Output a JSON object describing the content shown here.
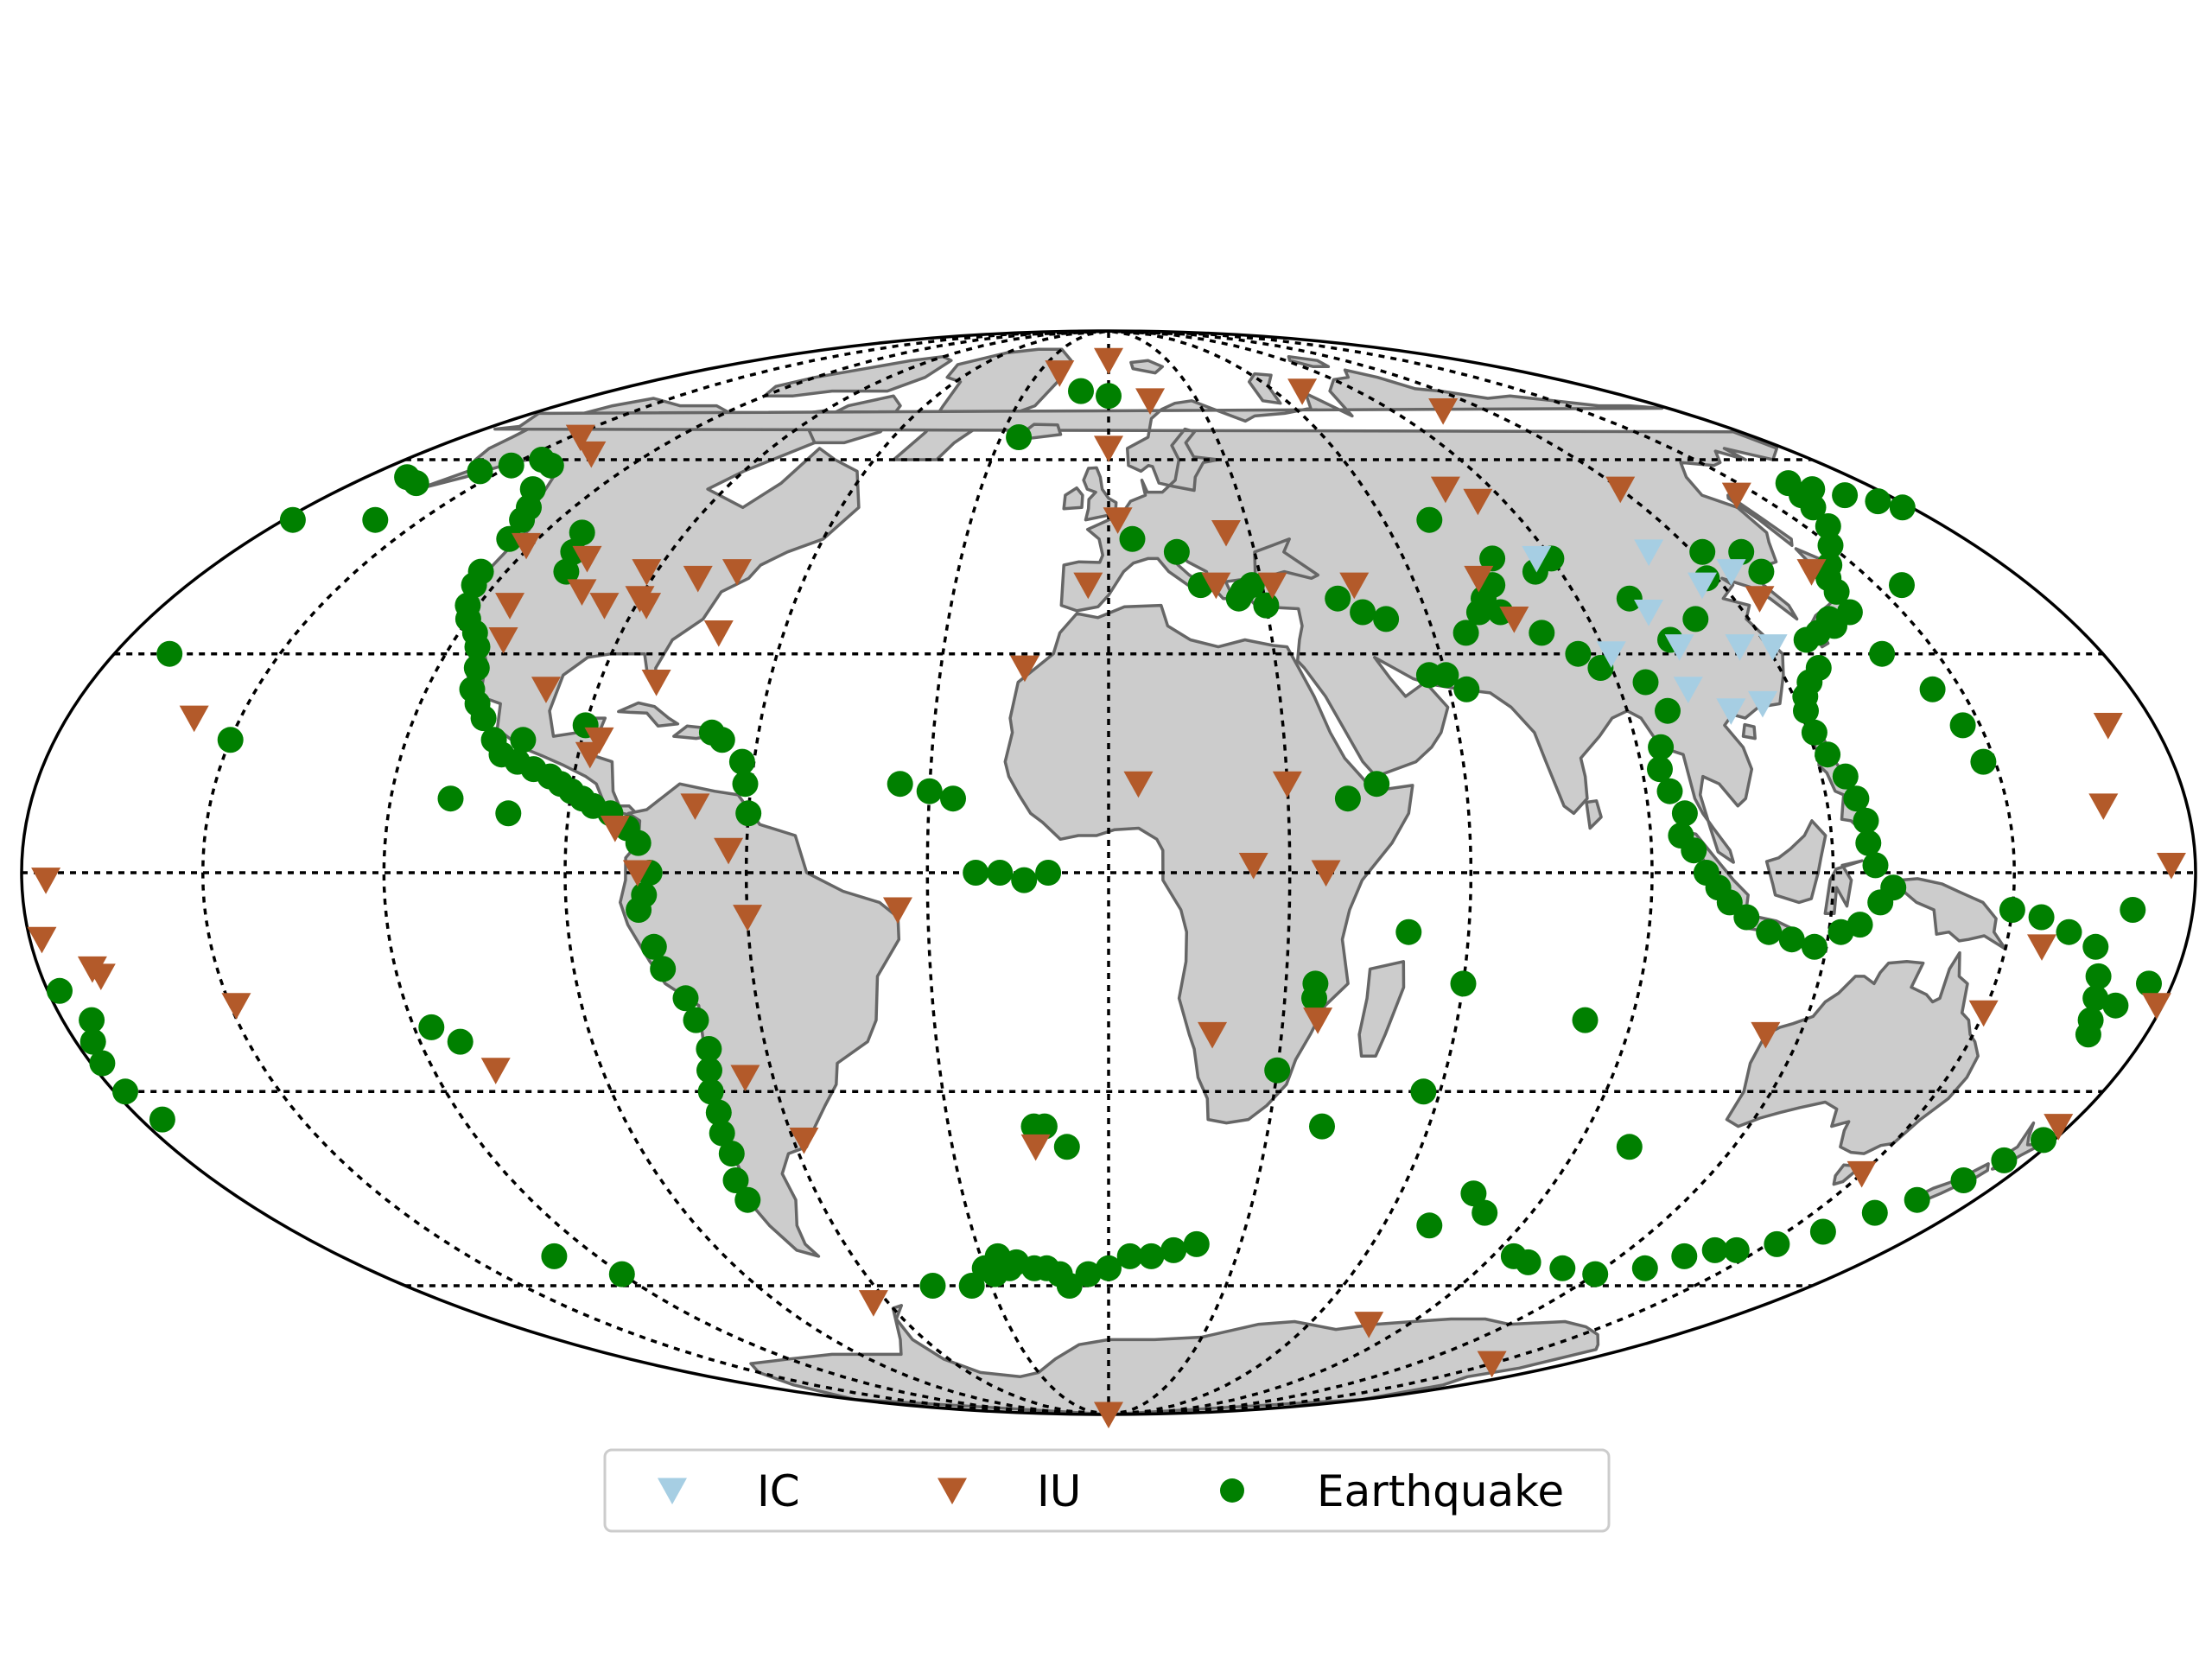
{
  "map": {
    "projection": "mollweide",
    "grid": {
      "shown": true,
      "style": "dotted",
      "color": "#000000",
      "meridian_step_deg": 30,
      "parallel_step_deg": 30
    },
    "colors": {
      "land": "#cccccc",
      "coastline": "#666666",
      "ocean": "#ffffff",
      "border": "#000000"
    },
    "legend": {
      "placement": "bottom-center",
      "entries": [
        {
          "label": "IC",
          "marker": "triangle-down",
          "color": "#a6cee3"
        },
        {
          "label": "IU",
          "marker": "triangle-down",
          "color": "#b35a2a"
        },
        {
          "label": "Earthquake",
          "marker": "circle",
          "color": "#008000"
        }
      ]
    }
  },
  "chart_data": {
    "type": "scatter",
    "series": [
      {
        "name": "IC",
        "marker": "triangle-down",
        "color": "#a6cee3",
        "points": [
          [
            87,
            44
          ],
          [
            102,
            36
          ],
          [
            111,
            45
          ],
          [
            116,
            40
          ],
          [
            124,
            42
          ],
          [
            104,
            31
          ],
          [
            115,
            31
          ],
          [
            121,
            31
          ],
          [
            108,
            22
          ],
          [
            91,
            30
          ],
          [
            102,
            25
          ],
          [
            114,
            23
          ]
        ]
      },
      {
        "name": "IU",
        "marker": "triangle-down",
        "color": "#b35a2a",
        "points": [
          [
            -158,
            21
          ],
          [
            -176,
            -1
          ],
          [
            -170,
            -14
          ],
          [
            -149,
            -18
          ],
          [
            -109,
            -27
          ],
          [
            -147,
            64
          ],
          [
            -135,
            61
          ],
          [
            -121,
            46
          ],
          [
            -106,
            44
          ],
          [
            -102,
            39
          ],
          [
            -111,
            32
          ],
          [
            -114,
            37
          ],
          [
            -96,
            37
          ],
          [
            -88,
            37
          ],
          [
            -81,
            41
          ],
          [
            -74,
            42
          ],
          [
            -72,
            33
          ],
          [
            -90,
            38
          ],
          [
            -92,
            42
          ],
          [
            -88,
            16
          ],
          [
            -99,
            25
          ],
          [
            -80,
            26
          ],
          [
            -87,
            18
          ],
          [
            -82,
            6
          ],
          [
            -69,
            9
          ],
          [
            -63,
            3
          ],
          [
            -78,
            0
          ],
          [
            -60,
            -6
          ],
          [
            -35,
            -5
          ],
          [
            -65,
            -28
          ],
          [
            -58,
            -37
          ],
          [
            -64,
            -63
          ],
          [
            -14,
            -38
          ],
          [
            -15,
            28
          ],
          [
            -21,
            77
          ],
          [
            0,
            80
          ],
          [
            14,
            71
          ],
          [
            0,
            62
          ],
          [
            2,
            50
          ],
          [
            25,
            48
          ],
          [
            -4,
            40
          ],
          [
            32,
            40
          ],
          [
            21,
            40
          ],
          [
            48,
            40
          ],
          [
            5,
            12
          ],
          [
            30,
            12
          ],
          [
            24,
            1
          ],
          [
            36,
            0
          ],
          [
            36,
            -20
          ],
          [
            18,
            -22
          ],
          [
            70,
            73
          ],
          [
            79,
            55
          ],
          [
            73,
            41
          ],
          [
            76,
            35
          ],
          [
            84,
            53
          ],
          [
            106,
            69
          ],
          [
            120,
            55
          ],
          [
            125,
            38
          ],
          [
            140,
            42
          ],
          [
            145,
            54
          ],
          [
            114,
            -22
          ],
          [
            150,
            -19
          ],
          [
            156,
            -10
          ],
          [
            172,
            20
          ],
          [
            176,
            1
          ],
          [
            166,
            9
          ],
          [
            179,
            -18
          ],
          [
            -178,
            -9
          ],
          [
            -171,
            -13
          ],
          [
            178,
            -35
          ],
          [
            150,
            -42
          ],
          [
            78,
            -67
          ],
          [
            150,
            -75
          ],
          [
            0,
            -90
          ]
        ]
      },
      {
        "name": "Earthquake",
        "marker": "circle",
        "color": "#008000",
        "points": [
          [
            -170,
            57
          ],
          [
            -165,
            56
          ],
          [
            -155,
            58
          ],
          [
            -150,
            59
          ],
          [
            -145,
            60
          ],
          [
            -140,
            59
          ],
          [
            -135,
            55
          ],
          [
            -130,
            52
          ],
          [
            -128,
            50
          ],
          [
            -126,
            47
          ],
          [
            -125,
            42
          ],
          [
            -124,
            40
          ],
          [
            -122,
            37
          ],
          [
            -120,
            35
          ],
          [
            -117,
            33
          ],
          [
            -115,
            31
          ],
          [
            -113,
            28
          ],
          [
            -112,
            25
          ],
          [
            -110,
            23
          ],
          [
            -108,
            21
          ],
          [
            -105,
            18
          ],
          [
            -103,
            16
          ],
          [
            -100,
            15
          ],
          [
            -97,
            14
          ],
          [
            -94,
            13
          ],
          [
            -92,
            12
          ],
          [
            -90,
            11
          ],
          [
            -88,
            10
          ],
          [
            -86,
            9
          ],
          [
            -83,
            8
          ],
          [
            -80,
            6
          ],
          [
            -78,
            4
          ],
          [
            -76,
            0
          ],
          [
            -77,
            -3
          ],
          [
            -78,
            -5
          ],
          [
            -76,
            -10
          ],
          [
            -75,
            -13
          ],
          [
            -72,
            -17
          ],
          [
            -71,
            -20
          ],
          [
            -70,
            -24
          ],
          [
            -71,
            -27
          ],
          [
            -72,
            -30
          ],
          [
            -72,
            -33
          ],
          [
            -73,
            -36
          ],
          [
            -73,
            -39
          ],
          [
            -75,
            -43
          ],
          [
            -75,
            -46
          ],
          [
            -66,
            18
          ],
          [
            -62,
            15
          ],
          [
            -61,
            12
          ],
          [
            -68,
            19
          ],
          [
            -60,
            8
          ],
          [
            -35,
            12
          ],
          [
            -30,
            11
          ],
          [
            -26,
            10
          ],
          [
            -22,
            0
          ],
          [
            -18,
            0
          ],
          [
            -14,
            -1
          ],
          [
            -10,
            0
          ],
          [
            -12,
            -35
          ],
          [
            -14,
            -35
          ],
          [
            -8,
            -38
          ],
          [
            -26,
            -55
          ],
          [
            -28,
            -58
          ],
          [
            -30,
            -57
          ],
          [
            -24,
            -57
          ],
          [
            -22,
            -56
          ],
          [
            -18,
            -57
          ],
          [
            -15,
            -57
          ],
          [
            -12,
            -58
          ],
          [
            -10,
            -60
          ],
          [
            -5,
            -58
          ],
          [
            0,
            -57
          ],
          [
            5,
            -55
          ],
          [
            10,
            -55
          ],
          [
            15,
            -54
          ],
          [
            20,
            -53
          ],
          [
            -35,
            -60
          ],
          [
            -45,
            -60
          ],
          [
            -117,
            -21
          ],
          [
            -113,
            -23
          ],
          [
            -130,
            -55
          ],
          [
            -120,
            -58
          ],
          [
            -150,
            18
          ],
          [
            -100,
            8
          ],
          [
            -110,
            10
          ],
          [
            -10,
            73
          ],
          [
            -25,
            64
          ],
          [
            0,
            72
          ],
          [
            5,
            47
          ],
          [
            14,
            45
          ],
          [
            18,
            40
          ],
          [
            25,
            38
          ],
          [
            28,
            40
          ],
          [
            30,
            37
          ],
          [
            26,
            39
          ],
          [
            44,
            38
          ],
          [
            48,
            36
          ],
          [
            52,
            35
          ],
          [
            57,
            27
          ],
          [
            60,
            27
          ],
          [
            63,
            25
          ],
          [
            66,
            33
          ],
          [
            70,
            36
          ],
          [
            72,
            38
          ],
          [
            74,
            36
          ],
          [
            80,
            33
          ],
          [
            85,
            30
          ],
          [
            88,
            28
          ],
          [
            95,
            26
          ],
          [
            97,
            22
          ],
          [
            94,
            17
          ],
          [
            93,
            14
          ],
          [
            94,
            11
          ],
          [
            96,
            8
          ],
          [
            95,
            5
          ],
          [
            97,
            3
          ],
          [
            99,
            0
          ],
          [
            101,
            -2
          ],
          [
            103,
            -4
          ],
          [
            106,
            -6
          ],
          [
            110,
            -8
          ],
          [
            114,
            -9
          ],
          [
            118,
            -10
          ],
          [
            122,
            -8
          ],
          [
            125,
            -7
          ],
          [
            128,
            -4
          ],
          [
            130,
            -2
          ],
          [
            127,
            1
          ],
          [
            126,
            4
          ],
          [
            126,
            7
          ],
          [
            125,
            10
          ],
          [
            124,
            13
          ],
          [
            122,
            16
          ],
          [
            121,
            19
          ],
          [
            121,
            22
          ],
          [
            122,
            24
          ],
          [
            124,
            26
          ],
          [
            127,
            28
          ],
          [
            128,
            32
          ],
          [
            131,
            33
          ],
          [
            135,
            34
          ],
          [
            140,
            36
          ],
          [
            141,
            39
          ],
          [
            142,
            41
          ],
          [
            143,
            42
          ],
          [
            145,
            43
          ],
          [
            150,
            46
          ],
          [
            155,
            49
          ],
          [
            158,
            52
          ],
          [
            160,
            54
          ],
          [
            162,
            56
          ],
          [
            165,
            55
          ],
          [
            170,
            54
          ],
          [
            175,
            53
          ],
          [
            178,
            52
          ],
          [
            130,
            45
          ],
          [
            130,
            42
          ],
          [
            122,
            45
          ],
          [
            118,
            41
          ],
          [
            110,
            35
          ],
          [
            103,
            32
          ],
          [
            100,
            38
          ],
          [
            90,
            44
          ],
          [
            85,
            42
          ],
          [
            78,
            44
          ],
          [
            75,
            40
          ],
          [
            70,
            50
          ],
          [
            135,
            35
          ],
          [
            150,
            -5
          ],
          [
            155,
            -6
          ],
          [
            160,
            -8
          ],
          [
            165,
            -10
          ],
          [
            167,
            -14
          ],
          [
            168,
            -17
          ],
          [
            169,
            -20
          ],
          [
            170,
            -22
          ],
          [
            172,
            -18
          ],
          [
            176,
            -15
          ],
          [
            -178,
            -16
          ],
          [
            -175,
            -20
          ],
          [
            -177,
            -23
          ],
          [
            -178,
            -26
          ],
          [
            -178,
            -30
          ],
          [
            -176,
            -34
          ],
          [
            178,
            -37
          ],
          [
            175,
            -40
          ],
          [
            172,
            -43
          ],
          [
            168,
            -46
          ],
          [
            163,
            -48
          ],
          [
            158,
            -51
          ],
          [
            152,
            -53
          ],
          [
            145,
            -54
          ],
          [
            140,
            -54
          ],
          [
            135,
            -55
          ],
          [
            130,
            -57
          ],
          [
            120,
            -58
          ],
          [
            110,
            -57
          ],
          [
            100,
            -56
          ],
          [
            95,
            -55
          ],
          [
            80,
            -48
          ],
          [
            70,
            -50
          ],
          [
            75,
            -45
          ],
          [
            100,
            -38
          ],
          [
            82,
            -20
          ],
          [
            60,
            -15
          ],
          [
            57,
            -30
          ],
          [
            35,
            -17
          ],
          [
            30,
            -27
          ],
          [
            40,
            -35
          ],
          [
            35,
            -15
          ],
          [
            50,
            -8
          ],
          [
            45,
            12
          ],
          [
            40,
            10
          ],
          [
            147,
            20
          ],
          [
            148,
            15
          ],
          [
            140,
            30
          ],
          [
            145,
            25
          ],
          [
            170,
            -5
          ],
          [
            -160,
            50
          ],
          [
            -178,
            50
          ],
          [
            155,
            40
          ],
          [
            -170,
            30
          ],
          [
            -112,
            48
          ],
          [
            -110,
            45
          ],
          [
            -108,
            42
          ],
          [
            -100,
            18
          ],
          [
            -90,
            20
          ]
        ]
      }
    ]
  }
}
